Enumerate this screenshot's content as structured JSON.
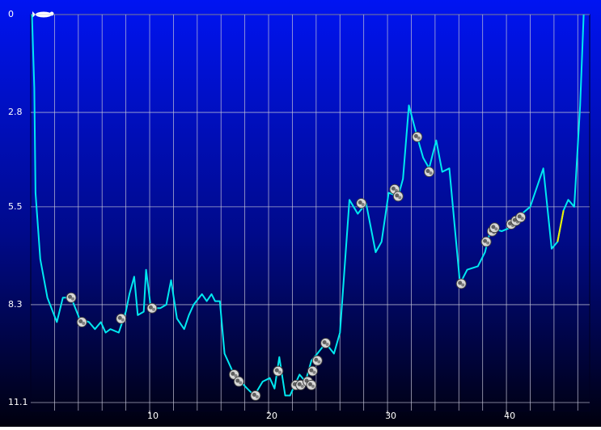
{
  "chart_data": {
    "type": "line",
    "x": [
      0.1,
      0.3,
      0.4,
      0.8,
      1.4,
      2.2,
      2.7,
      3.4,
      4.1,
      4.9,
      5.4,
      5.9,
      6.3,
      6.7,
      7.4,
      8.0,
      8.3,
      8.7,
      9.0,
      9.5,
      9.7,
      10.1,
      10.9,
      11.4,
      11.8,
      12.3,
      12.9,
      13.3,
      13.7,
      14.4,
      14.8,
      15.2,
      15.5,
      15.9,
      16.3,
      17.1,
      18.2,
      18.8,
      19.5,
      20.1,
      20.5,
      20.9,
      21.4,
      21.8,
      22.6,
      23.1,
      23.6,
      24.1,
      24.8,
      25.5,
      26.0,
      26.8,
      27.5,
      28.2,
      29.0,
      29.5,
      30.1,
      30.9,
      31.3,
      31.8,
      32.5,
      33.0,
      33.5,
      34.1,
      34.6,
      35.2,
      36.1,
      36.7,
      37.6,
      38.2,
      38.7,
      39.6,
      40.3,
      41.3,
      42.0,
      43.1,
      43.8,
      44.3,
      44.8,
      45.2,
      45.7,
      46.2,
      46.5
    ],
    "series": [
      {
        "color": "#00e8f0",
        "values": [
          0,
          2.1,
          5.1,
          7.0,
          8.1,
          8.8,
          8.1,
          8.1,
          8.7,
          8.8,
          9.0,
          8.8,
          9.1,
          9.0,
          9.1,
          8.5,
          8.0,
          7.5,
          8.6,
          8.5,
          7.3,
          8.4,
          8.4,
          8.3,
          7.6,
          8.7,
          9.0,
          8.6,
          8.3,
          8.0,
          8.2,
          8.0,
          8.2,
          8.2,
          9.7,
          10.3,
          10.7,
          10.9,
          10.5,
          10.4,
          10.7,
          9.8,
          10.9,
          10.9,
          10.3,
          10.5,
          9.9,
          9.7,
          9.4,
          9.7,
          9.1,
          5.3,
          5.7,
          5.4,
          6.8,
          6.5,
          5.1,
          5.2,
          4.7,
          2.6,
          3.5,
          4.1,
          4.4,
          3.6,
          4.5,
          4.4,
          7.7,
          7.3,
          7.2,
          6.8,
          6.1,
          6.2,
          6.1,
          5.7,
          5.5,
          4.4,
          6.7,
          6.5,
          5.6,
          5.3,
          5.5,
          2.6,
          0
        ]
      },
      {
        "color": "#f0f000",
        "values": [
          null,
          null,
          null,
          null,
          null,
          null,
          null,
          null,
          null,
          null,
          null,
          null,
          null,
          null,
          null,
          null,
          null,
          null,
          null,
          null,
          null,
          null,
          null,
          null,
          null,
          null,
          null,
          null,
          null,
          null,
          null,
          null,
          null,
          null,
          null,
          null,
          null,
          null,
          null,
          null,
          null,
          null,
          null,
          null,
          null,
          null,
          null,
          null,
          null,
          null,
          null,
          null,
          null,
          null,
          null,
          null,
          null,
          null,
          null,
          null,
          null,
          null,
          null,
          null,
          null,
          null,
          null,
          null,
          null,
          null,
          null,
          null,
          null,
          null,
          null,
          null,
          null,
          6.5,
          5.6,
          null,
          null,
          null,
          null
        ]
      }
    ],
    "markers": {
      "x": [
        3.4,
        4.3,
        7.6,
        10.2,
        17.1,
        17.5,
        18.9,
        20.8,
        22.3,
        22.7,
        23.3,
        23.7,
        23.6,
        24.1,
        24.8,
        27.8,
        30.6,
        30.9,
        32.5,
        33.5,
        36.2,
        38.3,
        38.8,
        39.0,
        40.4,
        40.8,
        41.2
      ],
      "y": [
        8.1,
        8.8,
        8.7,
        8.4,
        10.3,
        10.5,
        10.9,
        10.2,
        10.6,
        10.6,
        10.5,
        10.2,
        10.6,
        9.9,
        9.4,
        5.4,
        5.0,
        5.2,
        3.5,
        4.5,
        7.7,
        6.5,
        6.2,
        6.1,
        6.0,
        5.9,
        5.8
      ]
    },
    "xlim": [
      0,
      47
    ],
    "ylim": [
      0,
      11.1
    ],
    "y_inverted": true,
    "xticks": [
      10,
      20,
      30,
      40
    ],
    "xgrid": [
      2,
      4,
      6,
      8,
      10,
      12,
      14,
      16,
      18,
      20,
      22,
      24,
      26,
      28,
      30,
      32,
      34,
      36,
      38,
      40,
      42,
      44,
      46
    ],
    "yticks": [
      0,
      2.8,
      5.5,
      8.3,
      11.1
    ]
  }
}
